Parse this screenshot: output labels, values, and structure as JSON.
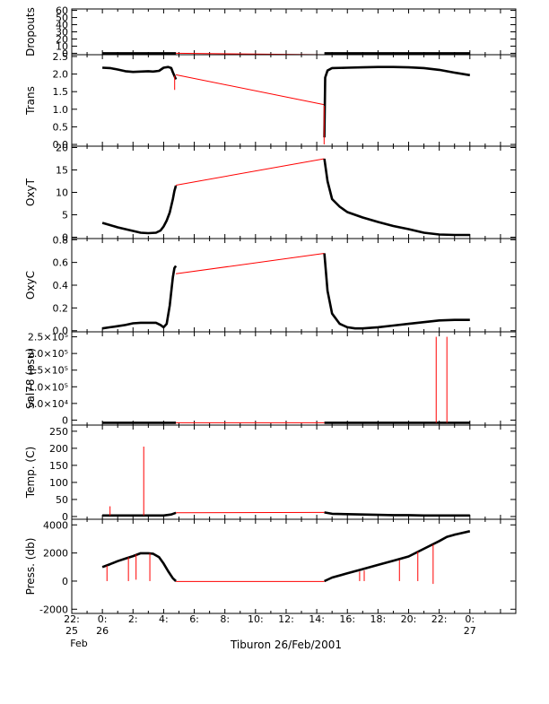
{
  "chart_data": {
    "type": "line",
    "title": "Tiburon 26/Feb/2001",
    "xlabel": "Tiburon 26/Feb/2001",
    "x_unit": "hours relative to 26 Feb 2001 00:00",
    "xlim": [
      -2,
      27
    ],
    "x_ticks": [
      {
        "x": -2,
        "l1": "22:",
        "l2": "25",
        "l3": "Feb"
      },
      {
        "x": 0,
        "l1": "0:",
        "l2": "26",
        "l3": ""
      },
      {
        "x": 2,
        "l1": "2:",
        "l2": "",
        "l3": ""
      },
      {
        "x": 4,
        "l1": "4:",
        "l2": "",
        "l3": ""
      },
      {
        "x": 6,
        "l1": "6:",
        "l2": "",
        "l3": ""
      },
      {
        "x": 8,
        "l1": "8:",
        "l2": "",
        "l3": ""
      },
      {
        "x": 10,
        "l1": "10:",
        "l2": "",
        "l3": ""
      },
      {
        "x": 12,
        "l1": "12:",
        "l2": "",
        "l3": ""
      },
      {
        "x": 14,
        "l1": "14:",
        "l2": "",
        "l3": ""
      },
      {
        "x": 16,
        "l1": "16:",
        "l2": "",
        "l3": ""
      },
      {
        "x": 18,
        "l1": "18:",
        "l2": "",
        "l3": ""
      },
      {
        "x": 20,
        "l1": "20:",
        "l2": "",
        "l3": ""
      },
      {
        "x": 22,
        "l1": "22:",
        "l2": "",
        "l3": ""
      },
      {
        "x": 24,
        "l1": "0:",
        "l2": "27",
        "l3": ""
      }
    ],
    "colors": {
      "data": "#000000",
      "gap": "#ff0000",
      "axis": "#000000"
    },
    "panels": [
      {
        "name": "dropouts",
        "ylabel": "Dropouts",
        "ylim": [
          -2,
          62
        ],
        "ticks": [
          {
            "v": 0,
            "t": "0"
          },
          {
            "v": 10,
            "t": "10"
          },
          {
            "v": 20,
            "t": "20"
          },
          {
            "v": 30,
            "t": "30"
          },
          {
            "v": 40,
            "t": "40"
          },
          {
            "v": 50,
            "t": "50"
          },
          {
            "v": 60,
            "t": "60"
          }
        ],
        "series": [
          {
            "style": "data",
            "x": [
              0,
              4.8
            ],
            "y": [
              0,
              0
            ]
          },
          {
            "style": "gap",
            "x": [
              4.8,
              14.5
            ],
            "y": [
              0,
              -2
            ]
          },
          {
            "style": "data",
            "x": [
              14.5,
              24
            ],
            "y": [
              0,
              0
            ]
          }
        ],
        "spikes": []
      },
      {
        "name": "trans",
        "ylabel": "Trans",
        "ylim": [
          -0.05,
          2.55
        ],
        "ticks": [
          {
            "v": 0,
            "t": "0.0"
          },
          {
            "v": 0.5,
            "t": "0.5"
          },
          {
            "v": 1,
            "t": "1.0"
          },
          {
            "v": 1.5,
            "t": "1.5"
          },
          {
            "v": 2,
            "t": "2.0"
          },
          {
            "v": 2.5,
            "t": "2.5"
          }
        ],
        "series": [
          {
            "style": "data",
            "x": [
              0,
              0.5,
              1.0,
              1.5,
              2.0,
              2.5,
              3.0,
              3.3,
              3.7,
              4.0,
              4.3,
              4.5,
              4.6,
              4.7,
              4.8
            ],
            "y": [
              2.18,
              2.17,
              2.13,
              2.08,
              2.06,
              2.07,
              2.08,
              2.07,
              2.09,
              2.18,
              2.2,
              2.17,
              2.05,
              1.95,
              1.85
            ]
          },
          {
            "style": "gap",
            "x": [
              4.8,
              14.5
            ],
            "y": [
              1.98,
              1.13
            ]
          },
          {
            "style": "data",
            "x": [
              14.5,
              14.55,
              14.7,
              15.0,
              16.0,
              17.0,
              18.0,
              19.0,
              20.0,
              21.0,
              22.0,
              23.0,
              24.0
            ],
            "y": [
              0.2,
              1.9,
              2.1,
              2.17,
              2.18,
              2.19,
              2.2,
              2.2,
              2.19,
              2.17,
              2.12,
              2.04,
              1.97
            ]
          }
        ],
        "spikes": [
          {
            "x": 4.72,
            "y0": 1.95,
            "y1": 1.55
          },
          {
            "x": 14.48,
            "y0": 1.1,
            "y1": 0.0
          }
        ]
      },
      {
        "name": "oxyt",
        "ylabel": "OxyT",
        "ylim": [
          -0.3,
          20.3
        ],
        "ticks": [
          {
            "v": 0,
            "t": "0"
          },
          {
            "v": 5,
            "t": "5"
          },
          {
            "v": 10,
            "t": "10"
          },
          {
            "v": 15,
            "t": "15"
          },
          {
            "v": 20,
            "t": "20"
          }
        ],
        "series": [
          {
            "style": "data",
            "x": [
              0,
              0.5,
              1.0,
              1.5,
              2.0,
              2.5,
              3.0,
              3.5,
              3.8,
              4.0,
              4.2,
              4.4,
              4.6,
              4.7,
              4.8
            ],
            "y": [
              3.2,
              2.7,
              2.2,
              1.8,
              1.4,
              1.0,
              0.9,
              1.0,
              1.5,
              2.4,
              3.7,
              5.5,
              8.5,
              10.3,
              11.5
            ]
          },
          {
            "style": "gap",
            "x": [
              4.8,
              14.5
            ],
            "y": [
              11.6,
              17.5
            ]
          },
          {
            "style": "data",
            "x": [
              14.5,
              14.7,
              15.0,
              15.5,
              16.0,
              17.0,
              18.0,
              19.0,
              20.0,
              21.0,
              22.0,
              23.0,
              24.0
            ],
            "y": [
              17.5,
              12.5,
              8.5,
              6.8,
              5.6,
              4.4,
              3.4,
              2.5,
              1.8,
              1.0,
              0.6,
              0.5,
              0.5
            ]
          }
        ],
        "spikes": []
      },
      {
        "name": "oxyc",
        "ylabel": "OxyC",
        "ylim": [
          -0.01,
          0.81
        ],
        "ticks": [
          {
            "v": 0,
            "t": "0.0"
          },
          {
            "v": 0.2,
            "t": "0.2"
          },
          {
            "v": 0.4,
            "t": "0.4"
          },
          {
            "v": 0.6,
            "t": "0.6"
          },
          {
            "v": 0.8,
            "t": "0.8"
          }
        ],
        "series": [
          {
            "style": "data",
            "x": [
              0,
              0.5,
              1.0,
              1.5,
              2.0,
              2.5,
              3.0,
              3.5,
              3.8,
              4.0,
              4.2,
              4.4,
              4.6,
              4.7,
              4.8
            ],
            "y": [
              0.02,
              0.03,
              0.04,
              0.05,
              0.065,
              0.07,
              0.07,
              0.07,
              0.05,
              0.03,
              0.06,
              0.22,
              0.47,
              0.55,
              0.57
            ]
          },
          {
            "style": "gap",
            "x": [
              4.8,
              14.5
            ],
            "y": [
              0.5,
              0.68
            ]
          },
          {
            "style": "data",
            "x": [
              14.5,
              14.7,
              15.0,
              15.5,
              16.0,
              16.5,
              17.0,
              18.0,
              19.0,
              20.0,
              21.0,
              22.0,
              23.0,
              24.0
            ],
            "y": [
              0.68,
              0.35,
              0.15,
              0.06,
              0.03,
              0.02,
              0.02,
              0.03,
              0.045,
              0.06,
              0.075,
              0.09,
              0.095,
              0.095
            ]
          }
        ],
        "spikes": []
      },
      {
        "name": "sal",
        "ylabel": "Sal78 (psu)",
        "ylim": [
          -15000,
          265000
        ],
        "ticks": [
          {
            "v": 0,
            "t": "0"
          },
          {
            "v": 50000,
            "t": "5.0×10⁴"
          },
          {
            "v": 100000,
            "t": "1.0×10⁵"
          },
          {
            "v": 150000,
            "t": "1.5×10⁵"
          },
          {
            "v": 200000,
            "t": "2.0×10⁵"
          },
          {
            "v": 250000,
            "t": "2.5×10⁵"
          }
        ],
        "series": [
          {
            "style": "data",
            "x": [
              0,
              4.8
            ],
            "y": [
              -8000,
              -8000
            ]
          },
          {
            "style": "gap",
            "x": [
              4.8,
              14.5
            ],
            "y": [
              -8000,
              -8000
            ]
          },
          {
            "style": "data",
            "x": [
              14.5,
              24
            ],
            "y": [
              -8000,
              -8000
            ]
          }
        ],
        "spikes": [
          {
            "x": 21.8,
            "y0": -8000,
            "y1": 250000
          },
          {
            "x": 22.5,
            "y0": -8000,
            "y1": 250000
          }
        ]
      },
      {
        "name": "temp",
        "ylabel": "Temp. (C)",
        "ylim": [
          -8,
          268
        ],
        "ticks": [
          {
            "v": 0,
            "t": "0"
          },
          {
            "v": 50,
            "t": "50"
          },
          {
            "v": 100,
            "t": "100"
          },
          {
            "v": 150,
            "t": "150"
          },
          {
            "v": 200,
            "t": "200"
          },
          {
            "v": 250,
            "t": "250"
          }
        ],
        "series": [
          {
            "style": "data",
            "x": [
              0,
              1.0,
              2.0,
              3.0,
              4.0,
              4.5,
              4.8
            ],
            "y": [
              3,
              3,
              3,
              3,
              3,
              6,
              11
            ]
          },
          {
            "style": "gap",
            "x": [
              4.8,
              14.5
            ],
            "y": [
              11,
              12
            ]
          },
          {
            "style": "data",
            "x": [
              14.5,
              15.0,
              16.0,
              17.0,
              18.0,
              19.0,
              20.0,
              21.0,
              22.0,
              23.0,
              24.0
            ],
            "y": [
              12,
              8,
              7,
              6,
              5,
              4,
              4,
              3,
              3,
              3,
              3
            ]
          }
        ],
        "spikes": [
          {
            "x": 0.5,
            "y0": 3,
            "y1": 30
          },
          {
            "x": 2.7,
            "y0": 3,
            "y1": 205
          }
        ]
      },
      {
        "name": "press",
        "ylabel": "Press. (db)",
        "ylim": [
          -2300,
          4400
        ],
        "ticks": [
          {
            "v": -2000,
            "t": "-2000"
          },
          {
            "v": 0,
            "t": "0"
          },
          {
            "v": 2000,
            "t": "2000"
          },
          {
            "v": 4000,
            "t": "4000"
          }
        ],
        "series": [
          {
            "style": "data",
            "x": [
              0,
              0.5,
              1.0,
              1.5,
              2.0,
              2.5,
              3.0,
              3.3,
              3.7,
              4.0,
              4.3,
              4.6,
              4.8
            ],
            "y": [
              1000,
              1200,
              1420,
              1600,
              1780,
              1980,
              1980,
              1950,
              1700,
              1250,
              700,
              200,
              0
            ]
          },
          {
            "style": "gap",
            "x": [
              4.8,
              14.5
            ],
            "y": [
              -30,
              -30
            ]
          },
          {
            "style": "data",
            "x": [
              14.5,
              15.0,
              16.0,
              17.0,
              18.0,
              19.0,
              20.0,
              21.0,
              22.0,
              22.5,
              23.0,
              24.0
            ],
            "y": [
              0,
              250,
              550,
              850,
              1150,
              1450,
              1750,
              2300,
              2850,
              3150,
              3300,
              3550
            ]
          }
        ],
        "spikes": [
          {
            "x": 0.3,
            "y0": 1100,
            "y1": 0
          },
          {
            "x": 1.7,
            "y0": 1700,
            "y1": 0
          },
          {
            "x": 2.2,
            "y0": 1900,
            "y1": 100
          },
          {
            "x": 3.1,
            "y0": 1980,
            "y1": 0
          },
          {
            "x": 16.8,
            "y0": 680,
            "y1": 0
          },
          {
            "x": 17.1,
            "y0": 750,
            "y1": 0
          },
          {
            "x": 19.4,
            "y0": 1500,
            "y1": 0
          },
          {
            "x": 20.6,
            "y0": 2100,
            "y1": 0
          },
          {
            "x": 21.6,
            "y0": 2600,
            "y1": -200
          }
        ]
      }
    ]
  }
}
